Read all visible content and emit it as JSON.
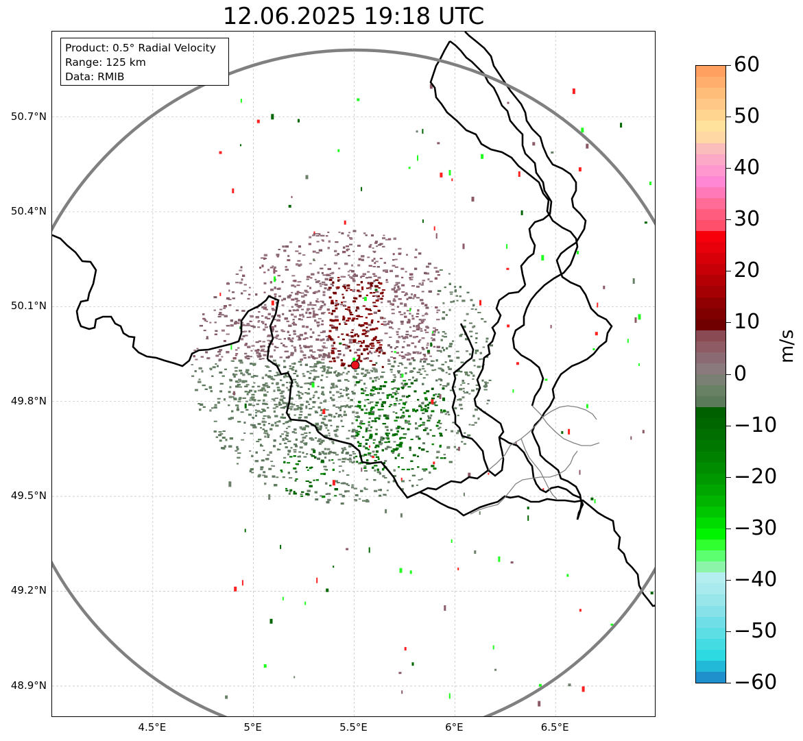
{
  "title": "12.06.2025 19:18 UTC",
  "info_box": {
    "product": "Product: 0.5° Radial Velocity",
    "range": "Range: 125 km",
    "data": "Data: RMIB"
  },
  "map": {
    "lon_range": [
      4.0,
      7.0
    ],
    "lat_range": [
      48.8,
      50.97
    ],
    "lon_ticks": [
      {
        "value": 4.5,
        "label": "4.5°E"
      },
      {
        "value": 5.0,
        "label": "5°E"
      },
      {
        "value": 5.5,
        "label": "5.5°E"
      },
      {
        "value": 6.0,
        "label": "6°E"
      },
      {
        "value": 6.5,
        "label": "6.5°E"
      }
    ],
    "lat_ticks": [
      {
        "value": 50.7,
        "label": "50.7°N"
      },
      {
        "value": 50.4,
        "label": "50.4°N"
      },
      {
        "value": 50.1,
        "label": "50.1°N"
      },
      {
        "value": 49.8,
        "label": "49.8°N"
      },
      {
        "value": 49.5,
        "label": "49.5°N"
      },
      {
        "value": 49.2,
        "label": "49.2°N"
      },
      {
        "value": 48.9,
        "label": "48.9°N"
      }
    ],
    "radar_site": {
      "lon": 5.505,
      "lat": 49.915,
      "color": "#e8111e"
    },
    "range_ring_color": "#808080",
    "border_color": "#000000",
    "region_border_color": "#808080",
    "grid": true
  },
  "colorbar": {
    "unit": "m/s",
    "range": [
      -60,
      60
    ],
    "ticks": [
      {
        "value": 60,
        "label": "60"
      },
      {
        "value": 50,
        "label": "50"
      },
      {
        "value": 40,
        "label": "40"
      },
      {
        "value": 30,
        "label": "30"
      },
      {
        "value": 20,
        "label": "20"
      },
      {
        "value": 10,
        "label": "10"
      },
      {
        "value": 0,
        "label": "0"
      },
      {
        "value": -10,
        "label": "−10"
      },
      {
        "value": -20,
        "label": "−20"
      },
      {
        "value": -30,
        "label": "−30"
      },
      {
        "value": -40,
        "label": "−40"
      },
      {
        "value": -50,
        "label": "−50"
      },
      {
        "value": -60,
        "label": "−60"
      }
    ],
    "colors_top_to_bottom": [
      "#ffa060",
      "#ffae6e",
      "#ffbd7a",
      "#ffc886",
      "#ffd58f",
      "#ffe29b",
      "#ffd8a4",
      "#fbbcbc",
      "#fba9c6",
      "#ff98cf",
      "#ff87d3",
      "#ff79b8",
      "#ff6c98",
      "#ff5c7e",
      "#ff4f6a",
      "#f7000c",
      "#e8000a",
      "#d80008",
      "#c60006",
      "#b40004",
      "#a40003",
      "#900002",
      "#800000",
      "#700000",
      "#8a4a54",
      "#8e5a64",
      "#8c6a74",
      "#8a7a7e",
      "#7a8074",
      "#688064",
      "#5a7a5a",
      "#006000",
      "#006600",
      "#006e00",
      "#007800",
      "#008200",
      "#008c00",
      "#009800",
      "#00a600",
      "#00b400",
      "#00c600",
      "#00dc00",
      "#00f400",
      "#30ff30",
      "#5cff70",
      "#8cf4a8",
      "#b4eef0",
      "#a8eaee",
      "#98e6ea",
      "#86e2e8",
      "#70dee6",
      "#5cdee4",
      "#44dce2",
      "#2edae2",
      "#22b8d8",
      "#2090cc"
    ]
  }
}
